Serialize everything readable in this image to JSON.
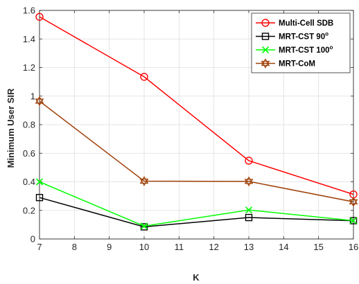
{
  "chart_data": {
    "type": "line",
    "title": "",
    "xlabel": "K",
    "ylabel": "Minimum User SIR",
    "x": [
      7,
      10,
      13,
      16
    ],
    "xlim": [
      7,
      16
    ],
    "ylim": [
      0,
      1.6
    ],
    "xticks": [
      "7",
      "8",
      "9",
      "10",
      "11",
      "12",
      "13",
      "14",
      "15",
      "16"
    ],
    "yticks": [
      "0",
      "0.2",
      "0.4",
      "0.6",
      "0.8",
      "1",
      "1.2",
      "1.4",
      "1.6"
    ],
    "grid": true,
    "legend_position": "top-right",
    "series": [
      {
        "name": "Multi-Cell SDB",
        "name_sup": "",
        "color": "#ff0000",
        "marker": "circle",
        "values": [
          1.555,
          1.135,
          0.548,
          0.312
        ]
      },
      {
        "name": "MRT-CST 90",
        "name_sup": "o",
        "color": "#000000",
        "marker": "square",
        "values": [
          0.29,
          0.085,
          0.15,
          0.128
        ]
      },
      {
        "name": "MRT-CST 100",
        "name_sup": "o",
        "color": "#00ff00",
        "marker": "x",
        "values": [
          0.4,
          0.09,
          0.203,
          0.128
        ]
      },
      {
        "name": "MRT-CoM",
        "name_sup": "",
        "color": "#a0410a",
        "marker": "hexagram",
        "values": [
          0.965,
          0.405,
          0.403,
          0.26
        ]
      }
    ]
  }
}
